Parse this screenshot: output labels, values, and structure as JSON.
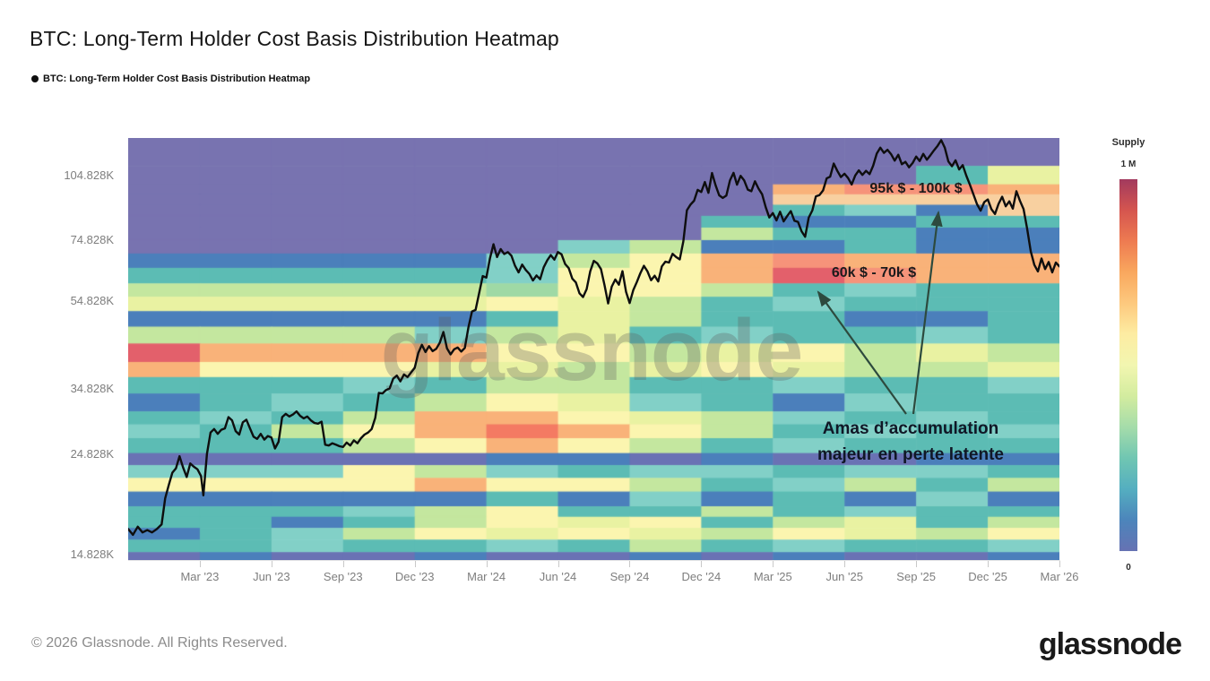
{
  "title": "BTC: Long-Term Holder Cost Basis Distribution Heatmap",
  "legend": {
    "label": "BTC: Long-Term Holder Cost Basis Distribution Heatmap"
  },
  "watermark": "glassnode",
  "annotations": {
    "band_high": "95k $ - 100k $",
    "band_low": "60k $ - 70k $",
    "note_line1": "Amas d’accumulation",
    "note_line2": "majeur en perte latente",
    "arrow_color": "#2d4a3e"
  },
  "colorbar": {
    "title": "Supply",
    "max_label": "1 M",
    "min_label": "0",
    "gradient_top_to_bottom": [
      "#a23a5e",
      "#d5554f",
      "#ee7b51",
      "#f9a75e",
      "#fdc97e",
      "#fdeca2",
      "#f2f6b0",
      "#d3ec9f",
      "#a5dcaa",
      "#70c6b2",
      "#54aec0",
      "#4c85bb",
      "#6672b3"
    ]
  },
  "footer": {
    "copyright": "© 2026 Glassnode. All Rights Reserved.",
    "logo": "glassnode"
  },
  "chart_data": {
    "type": "heatmap",
    "title": "BTC: Long-Term Holder Cost Basis Distribution Heatmap",
    "x_axis": {
      "start": "Dec 2022",
      "end": "Mar 2026",
      "total_months": 39,
      "tick_months": [
        3,
        6,
        9,
        12,
        15,
        18,
        21,
        24,
        27,
        30,
        33,
        36,
        39
      ],
      "tick_labels": [
        "Mar '23",
        "Jun '23",
        "Sep '23",
        "Dec '23",
        "Mar '24",
        "Jun '24",
        "Sep '24",
        "Dec '24",
        "Mar '25",
        "Jun '25",
        "Sep '25",
        "Dec '25",
        "Mar '26"
      ]
    },
    "y_axis": {
      "scale": "log",
      "unit": "BTC price (USD, thousands)",
      "domain_k": [
        14.4,
        127
      ],
      "tick_values_k": [
        104.828,
        74.828,
        54.828,
        34.828,
        24.828,
        14.828
      ],
      "tick_labels": [
        "104.828K",
        "74.828K",
        "54.828K",
        "34.828K",
        "24.828K",
        "14.828K"
      ]
    },
    "supply_colorbar": {
      "min_label": "0",
      "max_label": "1 M"
    },
    "palette": {
      "P": "#7873b0",
      "N": "#6a72b4",
      "B": "#4b7fbb",
      "T": "#5cbcb4",
      "C": "#82d0c7",
      "G": "#9fd9a5",
      "g": "#c4e79f",
      "Y": "#e9f2a2",
      "y": "#fbf5af",
      "L": "#f8d0a0",
      "O": "#f9b279",
      "S": "#f6937a",
      "R": "#f47a63",
      "D": "#e3606b"
    },
    "columns_per_row": 13,
    "rows": [
      {
        "price_top_k": 127,
        "price_bottom_k": 110,
        "cells": "PPPPPPPPPPPPP"
      },
      {
        "price_top_k": 110,
        "price_bottom_k": 100,
        "cells": "PPPPPPPPPPPTY"
      },
      {
        "price_top_k": 100,
        "price_bottom_k": 95,
        "cells": "PPPPPPPPPOSSO"
      },
      {
        "price_top_k": 95,
        "price_bottom_k": 90,
        "cells": "PPPPPPPPPLLLL"
      },
      {
        "price_top_k": 90,
        "price_bottom_k": 85,
        "cells": "PPPPPPPPPTCBL"
      },
      {
        "price_top_k": 85,
        "price_bottom_k": 80,
        "cells": "PPPPPPPPTBBTT"
      },
      {
        "price_top_k": 80,
        "price_bottom_k": 75,
        "cells": "PPPPPPPPgTTBB"
      },
      {
        "price_top_k": 75,
        "price_bottom_k": 70,
        "cells": "PPPPPPCgBBTBB"
      },
      {
        "price_top_k": 70,
        "price_bottom_k": 65,
        "cells": "BBBBBCgyOSOOO"
      },
      {
        "price_top_k": 65,
        "price_bottom_k": 60,
        "cells": "TTTTTCyyODSOO"
      },
      {
        "price_top_k": 60,
        "price_bottom_k": 56,
        "cells": "gggggGyygTCTT"
      },
      {
        "price_top_k": 56,
        "price_bottom_k": 52,
        "cells": "YYYYYyYgTCTTT"
      },
      {
        "price_top_k": 52,
        "price_bottom_k": 48,
        "cells": "BBBBBTYgTTBBT"
      },
      {
        "price_top_k": 48,
        "price_bottom_k": 44,
        "cells": "ggggCgYTCTTCT"
      },
      {
        "price_top_k": 44,
        "price_bottom_k": 40,
        "cells": "DOOOOyygYygYg"
      },
      {
        "price_top_k": 40,
        "price_bottom_k": 37,
        "cells": "OyyyYYgYyYggY"
      },
      {
        "price_top_k": 37,
        "price_bottom_k": 34,
        "cells": "TTTCTggTTCTTC"
      },
      {
        "price_top_k": 34,
        "price_bottom_k": 31,
        "cells": "BTCTgyYCTBCTT"
      },
      {
        "price_top_k": 31,
        "price_bottom_k": 29,
        "cells": "TCTgOOyYgCTCT"
      },
      {
        "price_top_k": 29,
        "price_bottom_k": 27,
        "cells": "CTgyOROygTCTC"
      },
      {
        "price_top_k": 27,
        "price_bottom_k": 25,
        "cells": "TTTgyOygTCTTT"
      },
      {
        "price_top_k": 25,
        "price_bottom_k": 23.5,
        "cells": "NNNNNBBNBNNBB"
      },
      {
        "price_top_k": 23.5,
        "price_bottom_k": 22,
        "cells": "CCCygCTCCTCCT"
      },
      {
        "price_top_k": 22,
        "price_bottom_k": 20.5,
        "cells": "yyyyOyygTCgTg"
      },
      {
        "price_top_k": 20.5,
        "price_bottom_k": 19,
        "cells": "BBBBBTBCBTBCB"
      },
      {
        "price_top_k": 19,
        "price_bottom_k": 18,
        "cells": "TTTCgyTTgTCTT"
      },
      {
        "price_top_k": 18,
        "price_bottom_k": 17,
        "cells": "TTBTgyYyTgYTg"
      },
      {
        "price_top_k": 17,
        "price_bottom_k": 16,
        "cells": "BTCgyYyYgyYgy"
      },
      {
        "price_top_k": 16,
        "price_bottom_k": 15,
        "cells": "TTCTTCTgTCTTC"
      },
      {
        "price_top_k": 15,
        "price_bottom_k": 14.4,
        "cells": "NBNNBNNBNBNNB"
      }
    ],
    "price_line": {
      "name": "BTC price",
      "color": "#0e0e0e",
      "points_month_price_k": [
        [
          0,
          16.9
        ],
        [
          0.2,
          16.4
        ],
        [
          0.4,
          17.1
        ],
        [
          0.6,
          16.6
        ],
        [
          0.8,
          16.8
        ],
        [
          1.0,
          16.6
        ],
        [
          1.2,
          16.9
        ],
        [
          1.4,
          17.3
        ],
        [
          1.55,
          19.8
        ],
        [
          1.7,
          21.2
        ],
        [
          1.85,
          22.6
        ],
        [
          2.0,
          23.1
        ],
        [
          2.15,
          24.6
        ],
        [
          2.3,
          23.2
        ],
        [
          2.45,
          22.1
        ],
        [
          2.6,
          23.7
        ],
        [
          2.75,
          23.3
        ],
        [
          2.9,
          23.0
        ],
        [
          3.05,
          22.2
        ],
        [
          3.15,
          20.1
        ],
        [
          3.3,
          24.9
        ],
        [
          3.45,
          27.8
        ],
        [
          3.6,
          28.3
        ],
        [
          3.75,
          27.6
        ],
        [
          3.9,
          28.2
        ],
        [
          4.05,
          28.4
        ],
        [
          4.2,
          30.1
        ],
        [
          4.35,
          29.6
        ],
        [
          4.5,
          28.0
        ],
        [
          4.65,
          27.5
        ],
        [
          4.8,
          29.3
        ],
        [
          4.95,
          29.7
        ],
        [
          5.1,
          28.4
        ],
        [
          5.25,
          27.2
        ],
        [
          5.4,
          26.9
        ],
        [
          5.55,
          27.6
        ],
        [
          5.7,
          26.8
        ],
        [
          5.85,
          27.3
        ],
        [
          6.0,
          27.1
        ],
        [
          6.15,
          25.6
        ],
        [
          6.3,
          26.5
        ],
        [
          6.45,
          30.1
        ],
        [
          6.6,
          30.6
        ],
        [
          6.75,
          30.2
        ],
        [
          6.9,
          30.5
        ],
        [
          7.05,
          31.0
        ],
        [
          7.2,
          30.3
        ],
        [
          7.35,
          29.9
        ],
        [
          7.5,
          30.2
        ],
        [
          7.65,
          29.6
        ],
        [
          7.8,
          29.2
        ],
        [
          7.95,
          29.1
        ],
        [
          8.1,
          29.4
        ],
        [
          8.25,
          26.1
        ],
        [
          8.4,
          26.0
        ],
        [
          8.55,
          26.3
        ],
        [
          8.7,
          26.1
        ],
        [
          8.85,
          25.9
        ],
        [
          9.0,
          25.8
        ],
        [
          9.15,
          26.4
        ],
        [
          9.3,
          26.0
        ],
        [
          9.45,
          26.7
        ],
        [
          9.6,
          26.3
        ],
        [
          9.75,
          27.0
        ],
        [
          9.9,
          27.5
        ],
        [
          10.05,
          27.8
        ],
        [
          10.2,
          28.3
        ],
        [
          10.35,
          30.0
        ],
        [
          10.5,
          34.1
        ],
        [
          10.65,
          34.0
        ],
        [
          10.8,
          34.6
        ],
        [
          10.95,
          34.9
        ],
        [
          11.1,
          36.7
        ],
        [
          11.25,
          37.3
        ],
        [
          11.4,
          36.2
        ],
        [
          11.55,
          37.5
        ],
        [
          11.7,
          37.0
        ],
        [
          11.85,
          37.9
        ],
        [
          12.0,
          38.8
        ],
        [
          12.15,
          41.9
        ],
        [
          12.3,
          43.7
        ],
        [
          12.45,
          42.1
        ],
        [
          12.6,
          43.4
        ],
        [
          12.75,
          42.3
        ],
        [
          12.9,
          42.8
        ],
        [
          13.05,
          44.2
        ],
        [
          13.2,
          46.7
        ],
        [
          13.35,
          42.9
        ],
        [
          13.5,
          41.6
        ],
        [
          13.65,
          42.7
        ],
        [
          13.8,
          43.1
        ],
        [
          13.95,
          42.2
        ],
        [
          14.1,
          43.0
        ],
        [
          14.25,
          47.8
        ],
        [
          14.4,
          51.9
        ],
        [
          14.55,
          52.3
        ],
        [
          14.7,
          57.1
        ],
        [
          14.85,
          62.3
        ],
        [
          15.0,
          61.8
        ],
        [
          15.15,
          68.2
        ],
        [
          15.3,
          73.4
        ],
        [
          15.45,
          68.7
        ],
        [
          15.6,
          71.6
        ],
        [
          15.75,
          69.8
        ],
        [
          15.9,
          70.5
        ],
        [
          16.05,
          69.2
        ],
        [
          16.2,
          65.7
        ],
        [
          16.35,
          63.5
        ],
        [
          16.5,
          66.1
        ],
        [
          16.65,
          64.3
        ],
        [
          16.8,
          63.0
        ],
        [
          16.95,
          60.9
        ],
        [
          17.1,
          62.5
        ],
        [
          17.25,
          61.3
        ],
        [
          17.4,
          65.2
        ],
        [
          17.55,
          67.6
        ],
        [
          17.7,
          69.4
        ],
        [
          17.85,
          67.8
        ],
        [
          18.0,
          70.5
        ],
        [
          18.15,
          69.7
        ],
        [
          18.3,
          66.3
        ],
        [
          18.45,
          64.9
        ],
        [
          18.6,
          61.5
        ],
        [
          18.75,
          60.3
        ],
        [
          18.9,
          57.0
        ],
        [
          19.05,
          55.9
        ],
        [
          19.2,
          58.2
        ],
        [
          19.35,
          63.8
        ],
        [
          19.5,
          67.4
        ],
        [
          19.65,
          66.5
        ],
        [
          19.8,
          64.6
        ],
        [
          19.95,
          59.4
        ],
        [
          20.1,
          54.1
        ],
        [
          20.25,
          59.0
        ],
        [
          20.4,
          61.2
        ],
        [
          20.55,
          59.6
        ],
        [
          20.7,
          63.9
        ],
        [
          20.85,
          57.4
        ],
        [
          21.0,
          54.2
        ],
        [
          21.15,
          57.9
        ],
        [
          21.3,
          60.4
        ],
        [
          21.45,
          63.2
        ],
        [
          21.6,
          65.7
        ],
        [
          21.75,
          63.8
        ],
        [
          21.9,
          61.0
        ],
        [
          22.05,
          62.4
        ],
        [
          22.2,
          60.6
        ],
        [
          22.35,
          65.5
        ],
        [
          22.5,
          67.1
        ],
        [
          22.65,
          66.8
        ],
        [
          22.8,
          69.9
        ],
        [
          22.95,
          68.7
        ],
        [
          23.1,
          67.9
        ],
        [
          23.25,
          74.5
        ],
        [
          23.4,
          87.5
        ],
        [
          23.55,
          90.1
        ],
        [
          23.7,
          91.9
        ],
        [
          23.85,
          97.2
        ],
        [
          24.0,
          96.1
        ],
        [
          24.15,
          101.2
        ],
        [
          24.3,
          95.7
        ],
        [
          24.45,
          106.0
        ],
        [
          24.6,
          99.5
        ],
        [
          24.75,
          94.5
        ],
        [
          24.9,
          93.2
        ],
        [
          25.05,
          94.4
        ],
        [
          25.2,
          102.0
        ],
        [
          25.35,
          106.1
        ],
        [
          25.5,
          99.8
        ],
        [
          25.65,
          104.5
        ],
        [
          25.8,
          102.0
        ],
        [
          25.95,
          97.3
        ],
        [
          26.1,
          96.5
        ],
        [
          26.25,
          101.6
        ],
        [
          26.4,
          97.8
        ],
        [
          26.55,
          95.0
        ],
        [
          26.7,
          88.9
        ],
        [
          26.85,
          84.3
        ],
        [
          27.0,
          86.2
        ],
        [
          27.15,
          83.0
        ],
        [
          27.3,
          86.8
        ],
        [
          27.45,
          82.6
        ],
        [
          27.6,
          84.9
        ],
        [
          27.75,
          87.1
        ],
        [
          27.9,
          82.9
        ],
        [
          28.05,
          82.4
        ],
        [
          28.2,
          78.5
        ],
        [
          28.35,
          76.3
        ],
        [
          28.5,
          84.2
        ],
        [
          28.65,
          87.4
        ],
        [
          28.8,
          94.0
        ],
        [
          28.95,
          94.6
        ],
        [
          29.1,
          96.9
        ],
        [
          29.25,
          103.1
        ],
        [
          29.4,
          104.0
        ],
        [
          29.55,
          111.3
        ],
        [
          29.7,
          107.2
        ],
        [
          29.85,
          103.8
        ],
        [
          30.0,
          105.6
        ],
        [
          30.15,
          103.3
        ],
        [
          30.3,
          99.9
        ],
        [
          30.45,
          104.7
        ],
        [
          30.6,
          107.5
        ],
        [
          30.75,
          105.0
        ],
        [
          30.9,
          107.2
        ],
        [
          31.05,
          105.4
        ],
        [
          31.2,
          110.1
        ],
        [
          31.35,
          117.2
        ],
        [
          31.5,
          120.8
        ],
        [
          31.65,
          117.6
        ],
        [
          31.8,
          119.5
        ],
        [
          31.95,
          116.8
        ],
        [
          32.1,
          113.0
        ],
        [
          32.25,
          116.5
        ],
        [
          32.4,
          110.9
        ],
        [
          32.55,
          112.3
        ],
        [
          32.7,
          109.2
        ],
        [
          32.85,
          111.6
        ],
        [
          33.0,
          115.4
        ],
        [
          33.15,
          112.8
        ],
        [
          33.3,
          117.0
        ],
        [
          33.45,
          113.5
        ],
        [
          33.6,
          116.2
        ],
        [
          33.75,
          119.2
        ],
        [
          33.9,
          122.0
        ],
        [
          34.05,
          125.6
        ],
        [
          34.2,
          120.8
        ],
        [
          34.35,
          112.5
        ],
        [
          34.5,
          109.8
        ],
        [
          34.65,
          113.2
        ],
        [
          34.8,
          108.0
        ],
        [
          34.95,
          110.4
        ],
        [
          35.1,
          104.6
        ],
        [
          35.25,
          99.8
        ],
        [
          35.4,
          94.9
        ],
        [
          35.55,
          90.2
        ],
        [
          35.7,
          87.3
        ],
        [
          35.85,
          91.2
        ],
        [
          36.0,
          92.5
        ],
        [
          36.15,
          88.0
        ],
        [
          36.3,
          85.8
        ],
        [
          36.45,
          90.4
        ],
        [
          36.6,
          93.8
        ],
        [
          36.75,
          89.3
        ],
        [
          36.9,
          91.6
        ],
        [
          37.05,
          88.2
        ],
        [
          37.2,
          96.5
        ],
        [
          37.35,
          91.8
        ],
        [
          37.5,
          88.0
        ],
        [
          37.65,
          79.5
        ],
        [
          37.8,
          70.8
        ],
        [
          37.95,
          66.0
        ],
        [
          38.1,
          63.8
        ],
        [
          38.25,
          68.2
        ],
        [
          38.4,
          64.6
        ],
        [
          38.55,
          67.0
        ],
        [
          38.7,
          63.5
        ],
        [
          38.85,
          66.8
        ],
        [
          39.0,
          65.5
        ]
      ]
    }
  }
}
